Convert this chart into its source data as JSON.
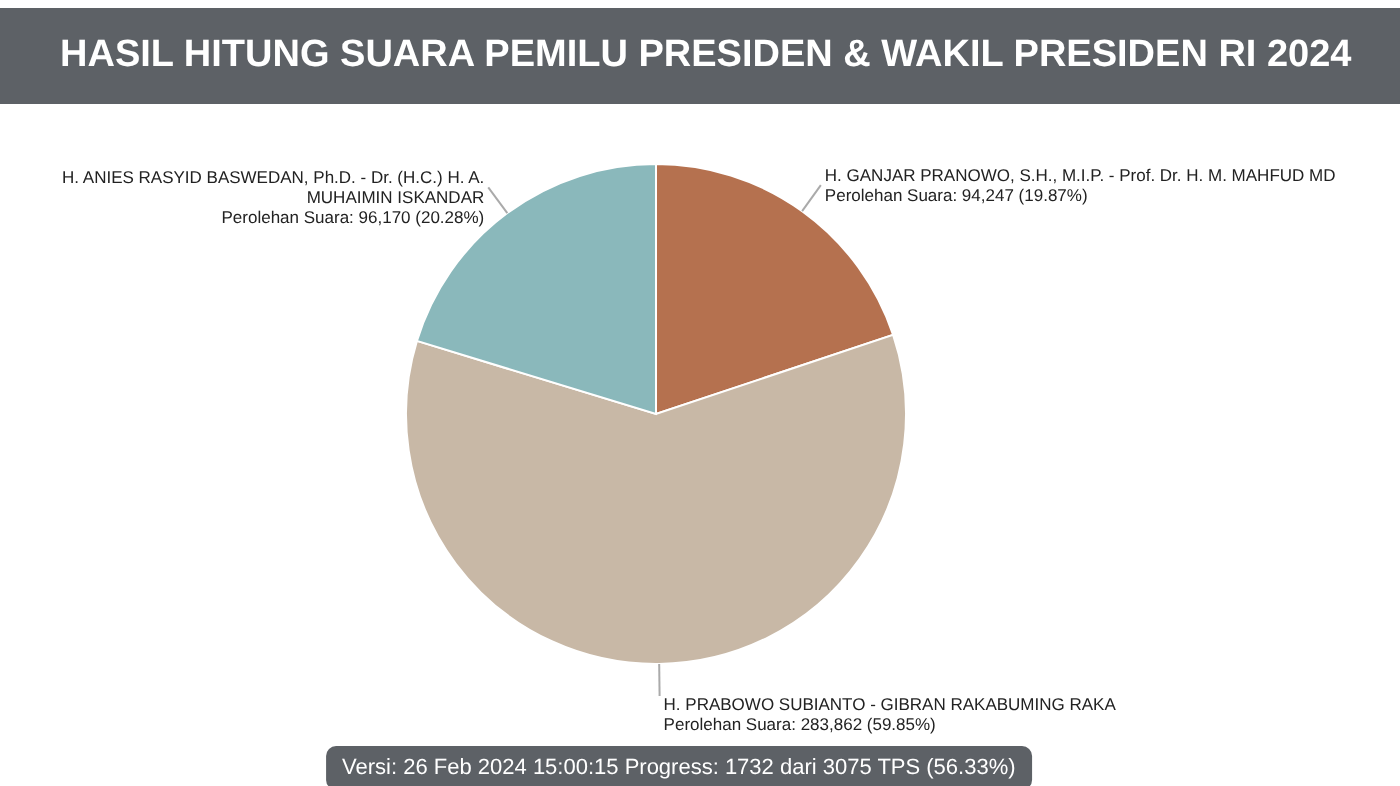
{
  "chart_data": {
    "type": "pie",
    "title": "HASIL HITUNG SUARA PEMILU PRESIDEN & WAKIL PRESIDEN RI 2024",
    "categories": [
      "H. GANJAR PRANOWO, S.H., M.I.P. - Prof. Dr. H. M. MAHFUD MD",
      "H. PRABOWO SUBIANTO - GIBRAN RAKABUMING RAKA",
      "H. ANIES RASYID BASWEDAN, Ph.D. - Dr. (H.C.) H. A. MUHAIMIN ISKANDAR"
    ],
    "values": [
      94247,
      283862,
      96170
    ],
    "colors": [
      "#b5714f",
      "#c8b8a6",
      "#8ab8bb"
    ],
    "value_labels": [
      "Perolehan Suara: 94,247 (19.87%)",
      "Perolehan Suara: 283,862 (59.85%)",
      "Perolehan Suara: 96,170 (20.28%)"
    ],
    "annotations": [
      "Versi: 26 Feb 2024 15:00:15 Progress: 1732 dari 3075 TPS (56.33%)"
    ]
  }
}
